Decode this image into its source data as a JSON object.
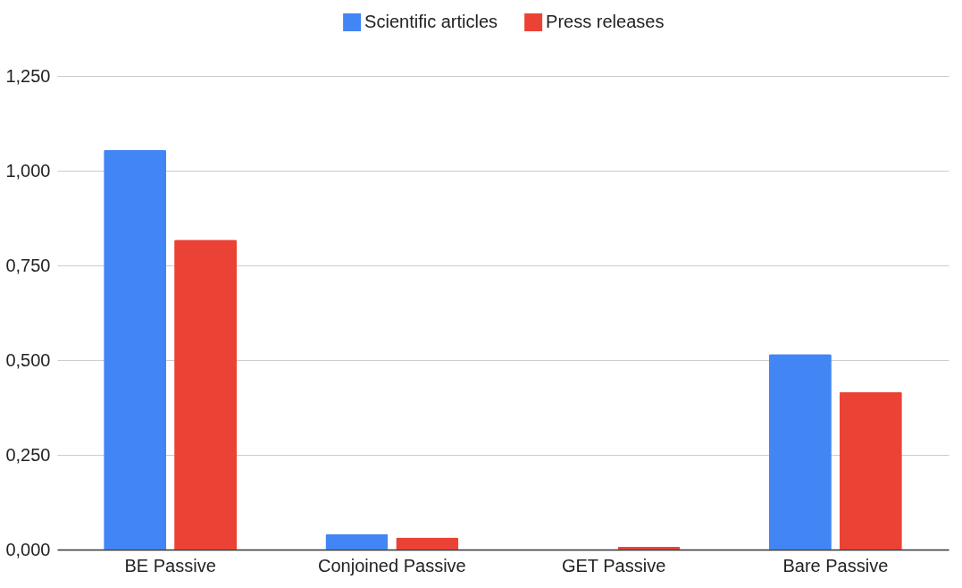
{
  "chart_data": {
    "type": "bar",
    "categories": [
      "BE Passive",
      "Conjoined Passive",
      "GET Passive",
      "Bare Passive"
    ],
    "series": [
      {
        "name": "Scientific articles",
        "color": "#4285f4",
        "values": [
          1.055,
          0.041,
          0,
          0.516
        ]
      },
      {
        "name": "Press releases",
        "color": "#ea4335",
        "values": [
          0.818,
          0.032,
          0.007,
          0.416
        ]
      }
    ],
    "ylim": [
      0,
      1.25
    ],
    "yticks": [
      {
        "value": 0,
        "label": "0,000"
      },
      {
        "value": 0.25,
        "label": "0,250"
      },
      {
        "value": 0.5,
        "label": "0,500"
      },
      {
        "value": 0.75,
        "label": "0,750"
      },
      {
        "value": 1,
        "label": "1,000"
      },
      {
        "value": 1.25,
        "label": "1,250"
      }
    ],
    "grid": "y",
    "legend": "top"
  }
}
